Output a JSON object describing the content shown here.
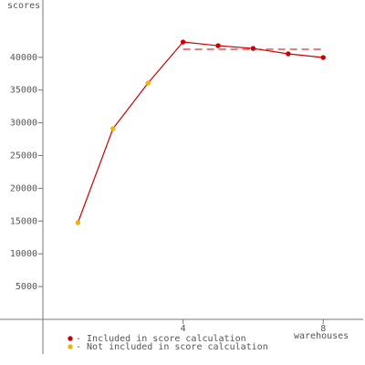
{
  "chart_data": {
    "type": "line",
    "y_label": "scores",
    "x_label": "warehouses",
    "x": [
      1,
      2,
      3,
      4,
      5,
      6,
      7,
      8
    ],
    "values": [
      14760,
      29110,
      36070,
      42340,
      41780,
      41360,
      40530,
      39970
    ],
    "point_colors": [
      "#f0b400",
      "#f0b400",
      "#f0b400",
      "#cc0000",
      "#cc0000",
      "#cc0000",
      "#cc0000",
      "#cc0000"
    ],
    "line_color": "#cc0000",
    "score_line": {
      "value": 41230,
      "x": [
        4,
        8
      ]
    },
    "legend": [
      {
        "label": "- Included in score calculation",
        "color": "#cc0000"
      },
      {
        "label": "- Not included in score calculation",
        "color": "#f0b400"
      }
    ],
    "xlim": [
      0,
      9.14
    ],
    "ylim": [
      -5300,
      48750
    ],
    "xticks": [
      4,
      8
    ],
    "yticks": [
      5000,
      10000,
      15000,
      20000,
      25000,
      30000,
      35000,
      40000
    ]
  }
}
